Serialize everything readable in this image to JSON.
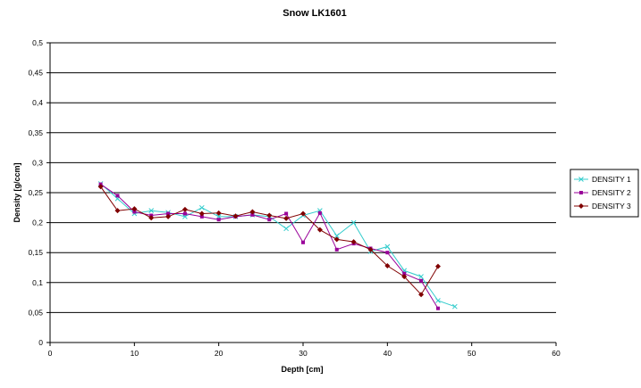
{
  "chart_data": {
    "type": "line",
    "title": "Snow LK1601",
    "xlabel": "Depth [cm]",
    "ylabel": "Density [g/ccm]",
    "xlim": [
      0,
      60
    ],
    "ylim": [
      0,
      0.5
    ],
    "x_ticks": [
      "0",
      "10",
      "20",
      "30",
      "40",
      "50",
      "60"
    ],
    "y_ticks": [
      "0",
      "0,05",
      "0,1",
      "0,15",
      "0,2",
      "0,25",
      "0,3",
      "0,35",
      "0,4",
      "0,45",
      "0,5"
    ],
    "grid": "horizontal",
    "legend_position": "right",
    "series": [
      {
        "name": "DENSITY 1",
        "color": "#33CCCC",
        "marker": "x",
        "points": [
          [
            6,
            0.265
          ],
          [
            8,
            0.24
          ],
          [
            10,
            0.215
          ],
          [
            12,
            0.22
          ],
          [
            14,
            0.217
          ],
          [
            16,
            0.21
          ],
          [
            18,
            0.225
          ],
          [
            20,
            0.21
          ],
          [
            22,
            0.21
          ],
          [
            24,
            0.213
          ],
          [
            26,
            0.21
          ],
          [
            28,
            0.19
          ],
          [
            30,
            0.212
          ],
          [
            32,
            0.22
          ],
          [
            34,
            0.178
          ],
          [
            36,
            0.2
          ],
          [
            38,
            0.152
          ],
          [
            40,
            0.16
          ],
          [
            42,
            0.12
          ],
          [
            44,
            0.11
          ],
          [
            46,
            0.07
          ],
          [
            48,
            0.06
          ]
        ]
      },
      {
        "name": "DENSITY 2",
        "color": "#990099",
        "marker": "square",
        "points": [
          [
            6,
            0.264
          ],
          [
            8,
            0.245
          ],
          [
            10,
            0.218
          ],
          [
            12,
            0.212
          ],
          [
            14,
            0.215
          ],
          [
            16,
            0.215
          ],
          [
            18,
            0.21
          ],
          [
            20,
            0.205
          ],
          [
            22,
            0.21
          ],
          [
            24,
            0.213
          ],
          [
            26,
            0.205
          ],
          [
            28,
            0.215
          ],
          [
            30,
            0.167
          ],
          [
            32,
            0.216
          ],
          [
            34,
            0.155
          ],
          [
            36,
            0.165
          ],
          [
            38,
            0.157
          ],
          [
            40,
            0.15
          ],
          [
            42,
            0.115
          ],
          [
            44,
            0.103
          ],
          [
            46,
            0.057
          ]
        ]
      },
      {
        "name": "DENSITY 3",
        "color": "#800000",
        "marker": "diamond",
        "points": [
          [
            6,
            0.26
          ],
          [
            8,
            0.22
          ],
          [
            10,
            0.223
          ],
          [
            12,
            0.208
          ],
          [
            14,
            0.21
          ],
          [
            16,
            0.222
          ],
          [
            18,
            0.215
          ],
          [
            20,
            0.216
          ],
          [
            22,
            0.211
          ],
          [
            24,
            0.218
          ],
          [
            26,
            0.212
          ],
          [
            28,
            0.207
          ],
          [
            30,
            0.215
          ],
          [
            32,
            0.188
          ],
          [
            34,
            0.172
          ],
          [
            36,
            0.168
          ],
          [
            38,
            0.155
          ],
          [
            40,
            0.128
          ],
          [
            42,
            0.11
          ],
          [
            44,
            0.08
          ],
          [
            46,
            0.127
          ]
        ]
      }
    ]
  }
}
